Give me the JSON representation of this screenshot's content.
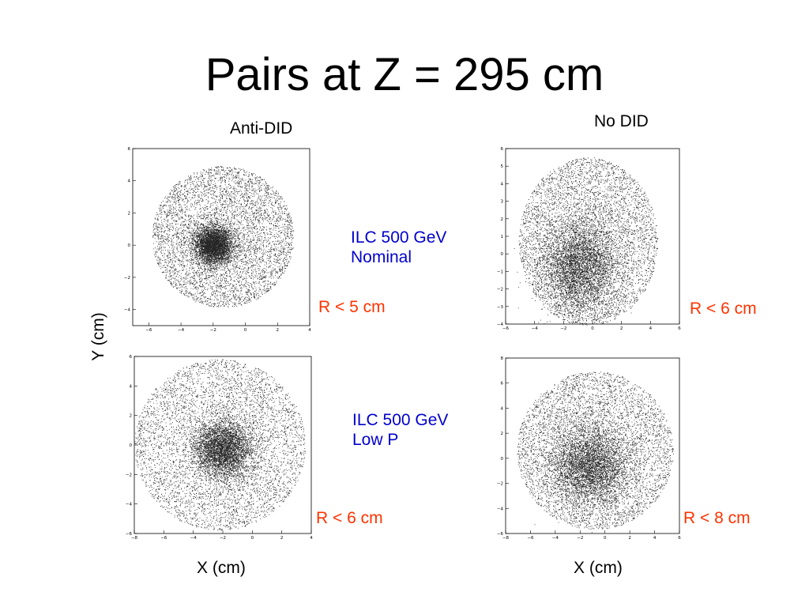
{
  "slide": {
    "title": "Pairs at Z = 295 cm",
    "col_left": "Anti-DID",
    "col_right": "No DID",
    "note_top": [
      "ILC 500 GeV",
      "Nominal"
    ],
    "note_bottom": [
      "ILC 500 GeV",
      "Low P"
    ],
    "y_axis": "Y (cm)",
    "x_axis_left": "X (cm)",
    "x_axis_right": "X (cm)",
    "text_colors": {
      "note": "#0000cc",
      "radius": "#ff3300"
    }
  },
  "chart_data": [
    {
      "type": "scatter",
      "id": "tl",
      "radius_label": "R < 5 cm",
      "xlim": [
        -7,
        4
      ],
      "ylim": [
        -5,
        6
      ],
      "xticks": [
        -6,
        -4,
        -2,
        0,
        2,
        4
      ],
      "yticks": [
        -4,
        -2,
        0,
        2,
        4,
        6
      ],
      "cloud": {
        "cx": -1.4,
        "cy": 0.5,
        "r": 4.4,
        "core": [
          -2,
          0
        ],
        "core_r": 0.6
      }
    },
    {
      "type": "scatter",
      "id": "tr",
      "radius_label": "R < 6 cm",
      "xlim": [
        -6,
        6
      ],
      "ylim": [
        -4,
        6
      ],
      "xticks": [
        -6,
        -4,
        -2,
        0,
        2,
        4,
        6
      ],
      "yticks": [
        -4,
        -3,
        -2,
        -1,
        0,
        1,
        2,
        3,
        4,
        5,
        6
      ],
      "cloud": {
        "cx": -0.3,
        "cy": 0.7,
        "r": 4.8,
        "core": [
          -0.9,
          -0.7
        ],
        "core_r": 1.3
      }
    },
    {
      "type": "scatter",
      "id": "bl",
      "radius_label": "R < 6 cm",
      "xlim": [
        -8,
        4
      ],
      "ylim": [
        -6,
        6
      ],
      "xticks": [
        -8,
        -6,
        -4,
        -2,
        0,
        2,
        4
      ],
      "yticks": [
        -6,
        -4,
        -2,
        0,
        2,
        4,
        6
      ],
      "cloud": {
        "cx": -2.2,
        "cy": 0.0,
        "r": 5.8,
        "core": [
          -2,
          -0.3
        ],
        "core_r": 1.0
      }
    },
    {
      "type": "scatter",
      "id": "br",
      "radius_label": "R < 8 cm",
      "xlim": [
        -8,
        6
      ],
      "ylim": [
        -6,
        8
      ],
      "xticks": [
        -8,
        -6,
        -4,
        -2,
        0,
        2,
        4,
        6
      ],
      "yticks": [
        -6,
        -4,
        -2,
        0,
        2,
        4,
        6,
        8
      ],
      "cloud": {
        "cx": -0.8,
        "cy": 0.6,
        "r": 6.3,
        "core": [
          -1.2,
          -0.6
        ],
        "core_r": 1.6
      }
    }
  ]
}
